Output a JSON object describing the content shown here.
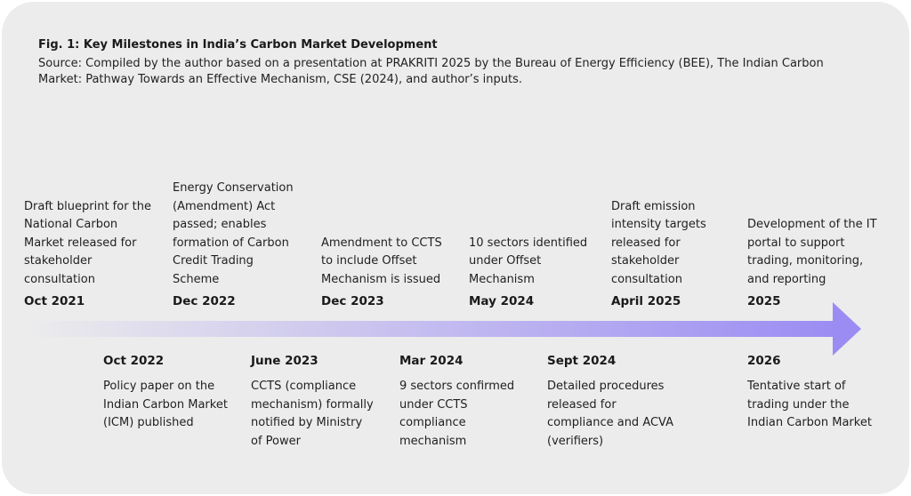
{
  "figure": {
    "title": "Fig. 1: Key Milestones in India’s Carbon Market Development",
    "source": "Source: Compiled by the author based on a presentation at PRAKRITI 2025 by the Bureau of Energy Efficiency (BEE), The Indian Carbon Market: Pathway Towards an Effective Mechanism, CSE (2024), and author’s inputs."
  },
  "timeline": {
    "arrow_color": "#9b8cf3",
    "top": [
      {
        "date": "Oct 2021",
        "text": "Draft blueprint for the National Carbon Market released for stakeholder consultation"
      },
      {
        "date": "Dec 2022",
        "text": "Energy Conservation (Amendment) Act passed; enables formation of Carbon Credit Trading Scheme"
      },
      {
        "date": "Dec 2023",
        "text": "Amendment to CCTS to include Offset Mechanism is issued"
      },
      {
        "date": "May 2024",
        "text": "10 sectors identified under Offset Mechanism"
      },
      {
        "date": "April 2025",
        "text": "Draft emission intensity targets released for stakeholder consultation"
      },
      {
        "date": "2025",
        "text": "Development of the IT portal to support trading, monitoring, and reporting"
      }
    ],
    "bottom": [
      {
        "date": "Oct 2022",
        "text": "Policy paper on the Indian Carbon Market (ICM) published"
      },
      {
        "date": "June 2023",
        "text": "CCTS (compliance mechanism) formally notified by Ministry of Power"
      },
      {
        "date": "Mar 2024",
        "text": "9 sectors confirmed under CCTS compliance mechanism"
      },
      {
        "date": "Sept 2024",
        "text": "Detailed procedures released for compliance and ACVA (verifiers)"
      },
      {
        "date": "2026",
        "text": "Tentative start of trading under the Indian Carbon Market"
      }
    ]
  }
}
